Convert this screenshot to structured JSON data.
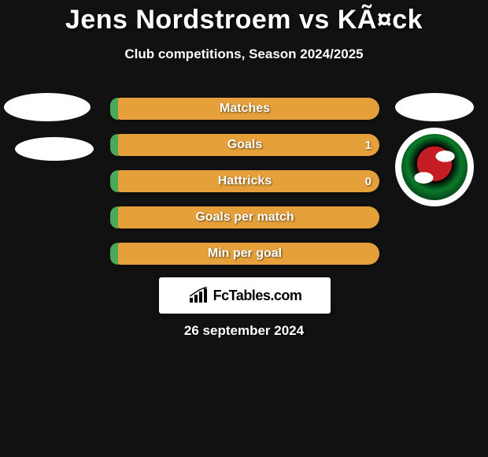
{
  "title": "Jens Nordstroem vs KÃ¤ck",
  "subtitle": "Club competitions, Season 2024/2025",
  "date": "26 september 2024",
  "brand": "FcTables.com",
  "colors": {
    "background": "#111111",
    "bar_fill": "#e6a03a",
    "bar_win": "#4aa958",
    "text": "#ffffff"
  },
  "stats": [
    {
      "label": "Matches",
      "left_val": "",
      "right_val": "",
      "win_pct": 3
    },
    {
      "label": "Goals",
      "left_val": "",
      "right_val": "1",
      "win_pct": 3
    },
    {
      "label": "Hattricks",
      "left_val": "",
      "right_val": "0",
      "win_pct": 3
    },
    {
      "label": "Goals per match",
      "left_val": "",
      "right_val": "",
      "win_pct": 3
    },
    {
      "label": "Min per goal",
      "left_val": "",
      "right_val": "",
      "win_pct": 3
    }
  ]
}
